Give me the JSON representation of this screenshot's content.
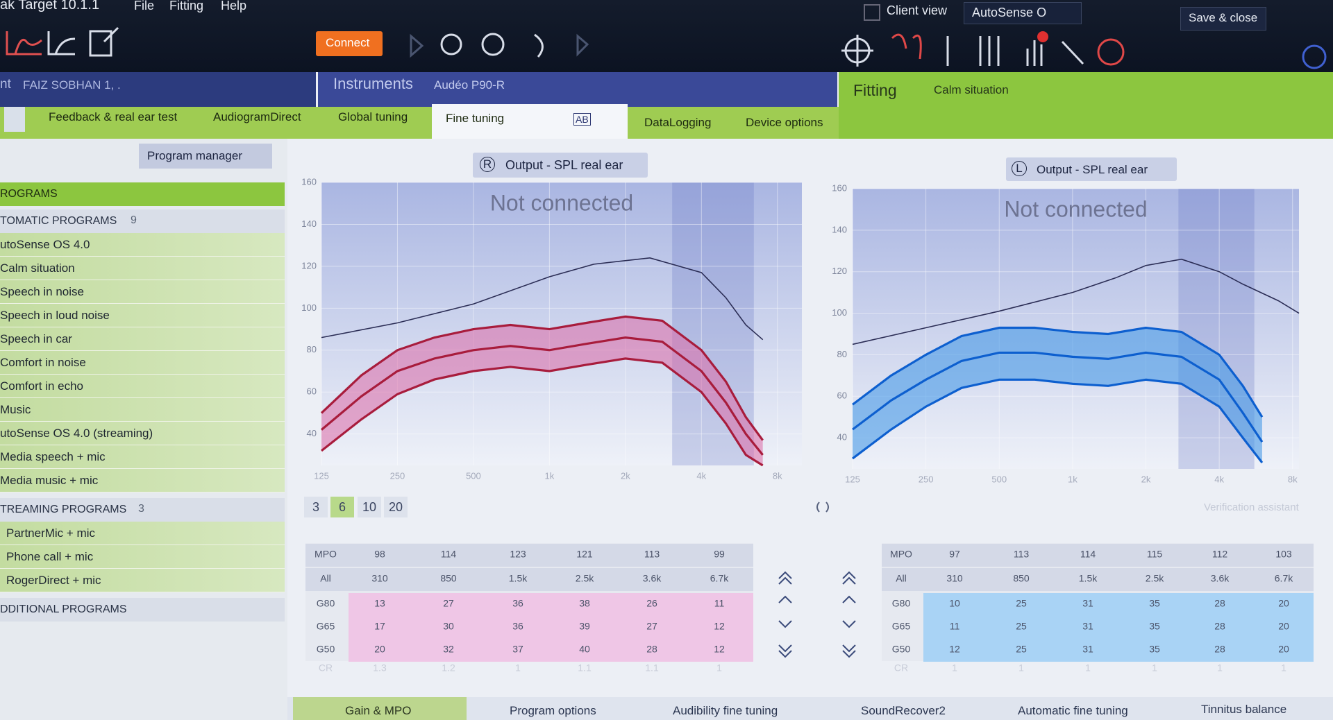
{
  "window": {
    "title": "ak Target 10.1.1",
    "menu": [
      "File",
      "Fitting",
      "Help"
    ],
    "client_view": "Client view",
    "autosense": "AutoSense O",
    "save_close": "Save & close"
  },
  "toolbar": {
    "connect": "Connect"
  },
  "header": {
    "client_prefix": "nt",
    "client": "FAIZ SOBHAN 1, .",
    "instruments": "Instruments",
    "device": "Audéo P90-R",
    "fitting": "Fitting",
    "situation": "Calm situation"
  },
  "tabs": [
    "Feedback & real ear test",
    "AudiogramDirect",
    "Global tuning",
    "Fine tuning",
    "DataLogging",
    "Device options"
  ],
  "ab_label": "AB",
  "program_manager": "Program manager",
  "programs": {
    "header": "ROGRAMS",
    "groups": [
      {
        "title": "TOMATIC PROGRAMS",
        "count": "9",
        "items": [
          "utoSense OS 4.0",
          "Calm situation",
          "Speech in noise",
          "Speech in loud noise",
          "Speech in car",
          "Comfort in noise",
          "Comfort in echo",
          "Music",
          "utoSense OS 4.0 (streaming)",
          "Media speech + mic",
          "Media music + mic"
        ]
      },
      {
        "title": "TREAMING PROGRAMS",
        "count": "3",
        "items": [
          "PartnerMic + mic",
          "Phone call + mic",
          "RogerDirect + mic"
        ]
      },
      {
        "title": "DDITIONAL PROGRAMS",
        "items": []
      }
    ]
  },
  "gain_steps": [
    "3",
    "6",
    "10",
    "20"
  ],
  "verification": "Verification assistant",
  "panels": [
    {
      "side": "R",
      "dropdown": "Output - SPL real ear",
      "status": "Not connected",
      "xscale": "log",
      "xlim": [
        125,
        10000
      ],
      "ylim": [
        25,
        160
      ],
      "xticks": [
        125,
        250,
        500,
        {
          "value": 1000,
          "label": "1k"
        },
        {
          "value": 2000,
          "label": "2k"
        },
        {
          "value": 4000,
          "label": "4k"
        },
        {
          "value": 8000,
          "label": "8k"
        }
      ],
      "yticks": [
        40,
        60,
        80,
        100,
        120,
        140,
        160
      ],
      "grid": true,
      "band_color": "#dc6aa6",
      "series": [
        {
          "color": "#2b2d55",
          "x": [
            125,
            250,
            500,
            1000,
            1500,
            2500,
            4000,
            5000,
            6000,
            7000
          ],
          "values": [
            86,
            93,
            102,
            115,
            121,
            124,
            117,
            105,
            92,
            85
          ]
        },
        {
          "color": "#a81c3c",
          "x": [
            125,
            180,
            250,
            350,
            500,
            700,
            1000,
            1400,
            2000,
            2800,
            4000,
            5000,
            6000,
            7000
          ],
          "values": [
            50,
            68,
            80,
            86,
            90,
            92,
            90,
            93,
            96,
            94,
            80,
            65,
            48,
            37
          ]
        },
        {
          "color": "#a81c3c",
          "x": [
            125,
            180,
            250,
            350,
            500,
            700,
            1000,
            1400,
            2000,
            2800,
            4000,
            5000,
            6000,
            7000
          ],
          "values": [
            42,
            58,
            70,
            76,
            80,
            82,
            80,
            83,
            86,
            84,
            70,
            55,
            40,
            30
          ]
        },
        {
          "color": "#a81c3c",
          "x": [
            125,
            180,
            250,
            350,
            500,
            700,
            1000,
            1400,
            2000,
            2800,
            4000,
            5000,
            6000,
            7000
          ],
          "values": [
            32,
            47,
            59,
            66,
            70,
            72,
            70,
            73,
            76,
            74,
            60,
            45,
            30,
            25
          ]
        }
      ],
      "table": {
        "row_color": "#efc6e6",
        "rows": [
          {
            "label": "MPO",
            "cells": [
              98,
              114,
              123,
              121,
              113,
              99
            ]
          },
          {
            "label": "All",
            "cells": [
              "310",
              "850",
              "1.5k",
              "2.5k",
              "3.6k",
              "6.7k"
            ]
          },
          {
            "label": "G80",
            "cells": [
              13,
              27,
              36,
              38,
              26,
              11
            ]
          },
          {
            "label": "G65",
            "cells": [
              17,
              30,
              36,
              39,
              27,
              12
            ]
          },
          {
            "label": "G50",
            "cells": [
              20,
              32,
              37,
              40,
              28,
              12
            ]
          },
          {
            "label": "CR",
            "cells": [
              "1.3",
              "1.2",
              "1",
              "1.1",
              "1.1",
              "1"
            ]
          }
        ]
      }
    },
    {
      "side": "L",
      "dropdown": "Output - SPL real ear",
      "status": "Not connected",
      "xscale": "log",
      "xlim": [
        125,
        8500
      ],
      "ylim": [
        25,
        160
      ],
      "xticks": [
        125,
        250,
        500,
        {
          "value": 1000,
          "label": "1k"
        },
        {
          "value": 2000,
          "label": "2k"
        },
        {
          "value": 4000,
          "label": "4k"
        },
        {
          "value": 8000,
          "label": "8k"
        }
      ],
      "yticks": [
        40,
        60,
        80,
        100,
        120,
        140,
        160
      ],
      "grid": true,
      "band_color": "#3b93e6",
      "series": [
        {
          "color": "#2b2d55",
          "x": [
            125,
            250,
            500,
            1000,
            1500,
            2000,
            2800,
            4000,
            5000,
            7000,
            8500
          ],
          "values": [
            85,
            93,
            101,
            110,
            117,
            123,
            126,
            120,
            114,
            106,
            100
          ]
        },
        {
          "color": "#0d5fcf",
          "x": [
            125,
            180,
            250,
            350,
            500,
            700,
            1000,
            1400,
            2000,
            2800,
            4000,
            5000,
            6000
          ],
          "values": [
            56,
            70,
            80,
            89,
            93,
            93,
            91,
            90,
            93,
            91,
            80,
            65,
            50
          ]
        },
        {
          "color": "#0d5fcf",
          "x": [
            125,
            180,
            250,
            350,
            500,
            700,
            1000,
            1400,
            2000,
            2800,
            4000,
            5000,
            6000
          ],
          "values": [
            44,
            58,
            68,
            77,
            81,
            81,
            79,
            78,
            81,
            79,
            68,
            52,
            38
          ]
        },
        {
          "color": "#0d5fcf",
          "x": [
            125,
            180,
            250,
            350,
            500,
            700,
            1000,
            1400,
            2000,
            2800,
            4000,
            5000,
            6000
          ],
          "values": [
            30,
            44,
            55,
            64,
            68,
            68,
            66,
            65,
            68,
            66,
            55,
            40,
            28
          ]
        }
      ],
      "table": {
        "row_color": "#a9d3f5",
        "rows": [
          {
            "label": "MPO",
            "cells": [
              97,
              113,
              114,
              115,
              112,
              103
            ]
          },
          {
            "label": "All",
            "cells": [
              "310",
              "850",
              "1.5k",
              "2.5k",
              "3.6k",
              "6.7k"
            ]
          },
          {
            "label": "G80",
            "cells": [
              10,
              25,
              31,
              35,
              28,
              20
            ]
          },
          {
            "label": "G65",
            "cells": [
              11,
              25,
              31,
              35,
              28,
              20
            ]
          },
          {
            "label": "G50",
            "cells": [
              12,
              25,
              31,
              35,
              28,
              20
            ]
          },
          {
            "label": "CR",
            "cells": [
              "1",
              "1",
              "1",
              "1",
              "1",
              "1"
            ]
          }
        ]
      }
    }
  ],
  "bottom_tabs": [
    "Gain & MPO",
    "Program options",
    "Audibility fine tuning",
    "SoundRecover2",
    "Automatic fine tuning",
    "Tinnitus balance"
  ]
}
